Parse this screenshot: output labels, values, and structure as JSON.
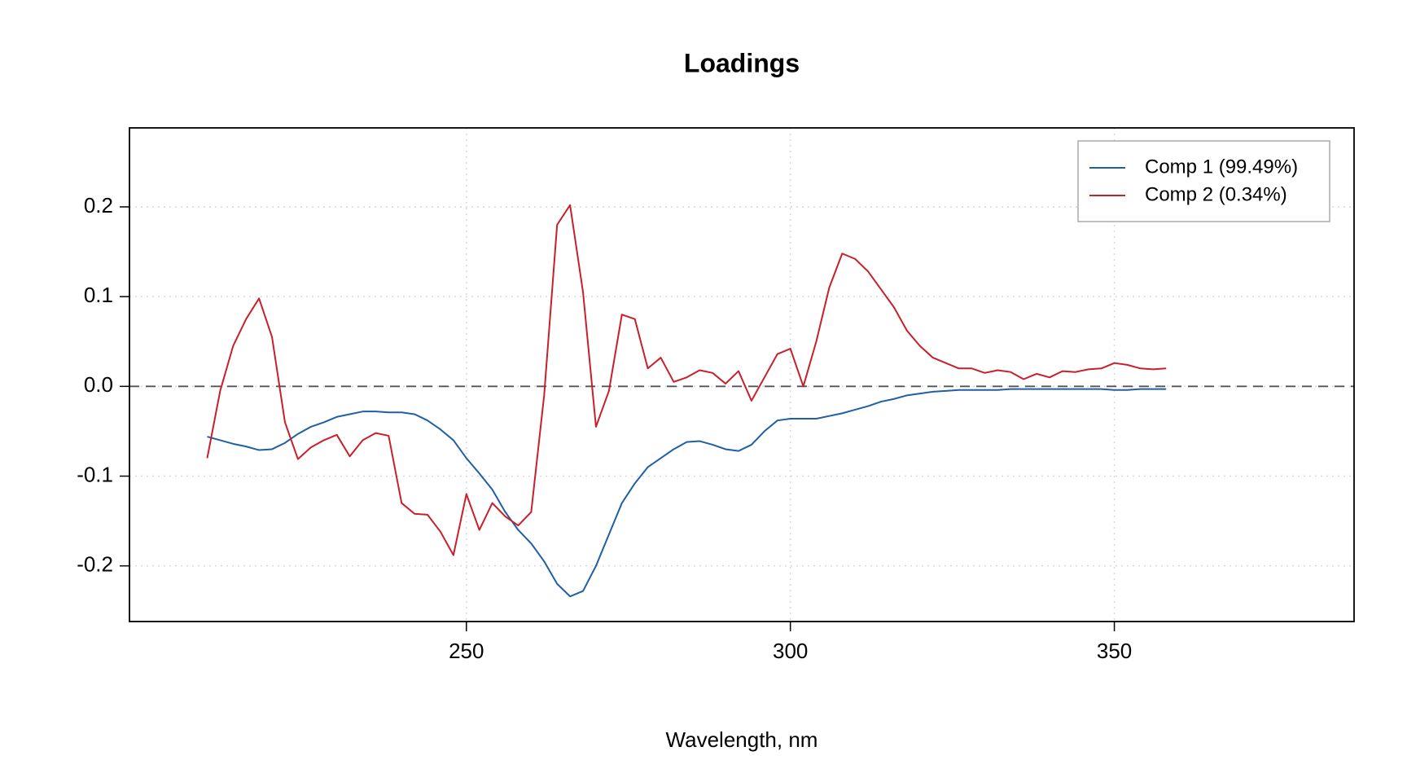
{
  "chart_data": {
    "type": "line",
    "title": "Loadings",
    "x_label": "Wavelength, nm",
    "x": [
      210,
      212,
      214,
      216,
      218,
      220,
      222,
      224,
      226,
      228,
      230,
      232,
      234,
      236,
      238,
      240,
      242,
      244,
      246,
      248,
      250,
      252,
      254,
      256,
      258,
      260,
      262,
      264,
      266,
      268,
      270,
      272,
      274,
      276,
      278,
      280,
      282,
      284,
      286,
      288,
      290,
      292,
      294,
      296,
      298,
      300,
      302,
      304,
      306,
      308,
      310,
      312,
      314,
      316,
      318,
      320,
      322,
      324,
      326,
      328,
      330,
      332,
      334,
      336,
      338,
      340,
      342,
      344,
      346,
      348,
      350,
      352,
      354,
      356,
      358
    ],
    "series": [
      {
        "name": "Comp 1 (99.49%)",
        "color": "#1f5fa6",
        "values": [
          -0.056,
          -0.06,
          -0.064,
          -0.067,
          -0.071,
          -0.07,
          -0.063,
          -0.053,
          -0.045,
          -0.04,
          -0.034,
          -0.031,
          -0.028,
          -0.028,
          -0.029,
          -0.029,
          -0.031,
          -0.038,
          -0.048,
          -0.06,
          -0.08,
          -0.097,
          -0.115,
          -0.14,
          -0.16,
          -0.175,
          -0.195,
          -0.22,
          -0.234,
          -0.228,
          -0.2,
          -0.165,
          -0.13,
          -0.108,
          -0.09,
          -0.08,
          -0.07,
          -0.062,
          -0.061,
          -0.065,
          -0.07,
          -0.072,
          -0.065,
          -0.05,
          -0.038,
          -0.036,
          -0.036,
          -0.036,
          -0.033,
          -0.03,
          -0.026,
          -0.022,
          -0.017,
          -0.014,
          -0.01,
          -0.008,
          -0.006,
          -0.005,
          -0.004,
          -0.004,
          -0.004,
          -0.004,
          -0.003,
          -0.003,
          -0.003,
          -0.003,
          -0.003,
          -0.003,
          -0.003,
          -0.003,
          -0.004,
          -0.004,
          -0.003,
          -0.003,
          -0.003
        ]
      },
      {
        "name": "Comp 2 (0.34%)",
        "color": "#c8202a",
        "values": [
          -0.08,
          -0.005,
          0.045,
          0.075,
          0.098,
          0.055,
          -0.04,
          -0.081,
          -0.068,
          -0.06,
          -0.054,
          -0.078,
          -0.06,
          -0.052,
          -0.055,
          -0.13,
          -0.142,
          -0.143,
          -0.162,
          -0.188,
          -0.12,
          -0.16,
          -0.13,
          -0.145,
          -0.155,
          -0.14,
          -0.01,
          0.18,
          0.202,
          0.105,
          -0.045,
          -0.005,
          0.08,
          0.075,
          0.02,
          0.032,
          0.005,
          0.01,
          0.018,
          0.015,
          0.003,
          0.017,
          -0.016,
          0.01,
          0.036,
          0.042,
          0.0,
          0.05,
          0.11,
          0.148,
          0.142,
          0.128,
          0.108,
          0.088,
          0.062,
          0.045,
          0.032,
          0.026,
          0.02,
          0.02,
          0.015,
          0.018,
          0.016,
          0.008,
          0.014,
          0.01,
          0.017,
          0.016,
          0.019,
          0.02,
          0.026,
          0.024,
          0.02,
          0.019,
          0.02
        ]
      }
    ],
    "xlim": [
      198,
      387
    ],
    "ylim": [
      -0.262,
      0.288
    ],
    "xticks": [
      250,
      300,
      350
    ],
    "yticks": [
      {
        "value": -0.2,
        "label": "-0.2"
      },
      {
        "value": -0.1,
        "label": "-0.1"
      },
      {
        "value": 0,
        "label": "0.0"
      },
      {
        "value": 0.1,
        "label": "0.1"
      },
      {
        "value": 0.2,
        "label": "0.2"
      }
    ],
    "grid": true,
    "hline": 0,
    "legend": "topright"
  }
}
